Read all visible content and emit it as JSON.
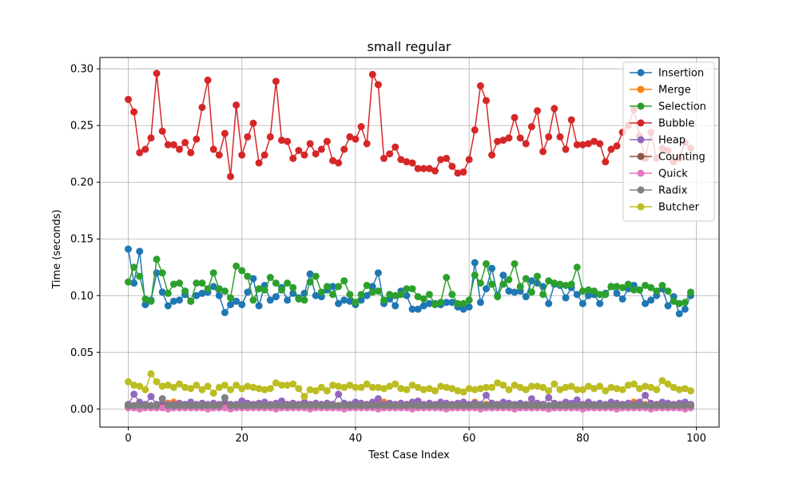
{
  "chart_data": {
    "type": "line",
    "title": "small regular",
    "xlabel": "Test Case Index",
    "ylabel": "Time (seconds)",
    "xlim": [
      -5,
      104
    ],
    "ylim": [
      -0.016,
      0.31
    ],
    "xticks": [
      0,
      20,
      40,
      60,
      80,
      100
    ],
    "yticks": [
      0.0,
      0.05,
      0.1,
      0.15,
      0.2,
      0.25,
      0.3
    ],
    "ytick_labels": [
      "0.00",
      "0.05",
      "0.10",
      "0.15",
      "0.20",
      "0.25",
      "0.30"
    ],
    "grid": true,
    "legend_position": "top-right",
    "x": [
      0,
      1,
      2,
      3,
      4,
      5,
      6,
      7,
      8,
      9,
      10,
      11,
      12,
      13,
      14,
      15,
      16,
      17,
      18,
      19,
      20,
      21,
      22,
      23,
      24,
      25,
      26,
      27,
      28,
      29,
      30,
      31,
      32,
      33,
      34,
      35,
      36,
      37,
      38,
      39,
      40,
      41,
      42,
      43,
      44,
      45,
      46,
      47,
      48,
      49,
      50,
      51,
      52,
      53,
      54,
      55,
      56,
      57,
      58,
      59,
      60,
      61,
      62,
      63,
      64,
      65,
      66,
      67,
      68,
      69,
      70,
      71,
      72,
      73,
      74,
      75,
      76,
      77,
      78,
      79,
      80,
      81,
      82,
      83,
      84,
      85,
      86,
      87,
      88,
      89,
      90,
      91,
      92,
      93,
      94,
      95,
      96,
      97,
      98,
      99
    ],
    "series": [
      {
        "name": "Insertion",
        "color": "#1f77b4",
        "values": [
          0.141,
          0.111,
          0.139,
          0.092,
          0.096,
          0.12,
          0.103,
          0.091,
          0.095,
          0.096,
          0.101,
          0.095,
          0.1,
          0.102,
          0.103,
          0.108,
          0.1,
          0.085,
          0.092,
          0.095,
          0.092,
          0.103,
          0.115,
          0.091,
          0.109,
          0.096,
          0.099,
          0.107,
          0.096,
          0.102,
          0.098,
          0.102,
          0.119,
          0.1,
          0.099,
          0.105,
          0.108,
          0.093,
          0.096,
          0.095,
          0.092,
          0.096,
          0.1,
          0.108,
          0.12,
          0.093,
          0.097,
          0.091,
          0.104,
          0.1,
          0.088,
          0.088,
          0.091,
          0.093,
          0.093,
          0.092,
          0.094,
          0.094,
          0.09,
          0.088,
          0.09,
          0.129,
          0.094,
          0.106,
          0.124,
          0.1,
          0.118,
          0.104,
          0.103,
          0.104,
          0.099,
          0.113,
          0.111,
          0.108,
          0.093,
          0.11,
          0.109,
          0.098,
          0.107,
          0.101,
          0.093,
          0.1,
          0.101,
          0.093,
          0.102,
          0.108,
          0.102,
          0.097,
          0.106,
          0.109,
          0.105,
          0.093,
          0.096,
          0.1,
          0.106,
          0.091,
          0.099,
          0.084,
          0.088,
          0.1
        ]
      },
      {
        "name": "Merge",
        "color": "#ff7f0e",
        "values": [
          0.004,
          0.003,
          0.003,
          0.004,
          0.003,
          0.004,
          0.003,
          0.005,
          0.006,
          0.003,
          0.004,
          0.003,
          0.003,
          0.004,
          0.003,
          0.004,
          0.003,
          0.004,
          0.003,
          0.004,
          0.007,
          0.003,
          0.004,
          0.003,
          0.004,
          0.003,
          0.004,
          0.003,
          0.004,
          0.003,
          0.004,
          0.003,
          0.004,
          0.003,
          0.004,
          0.003,
          0.004,
          0.003,
          0.004,
          0.003,
          0.004,
          0.003,
          0.004,
          0.003,
          0.004,
          0.006,
          0.003,
          0.004,
          0.003,
          0.004,
          0.003,
          0.004,
          0.003,
          0.004,
          0.003,
          0.004,
          0.003,
          0.004,
          0.003,
          0.004,
          0.003,
          0.006,
          0.003,
          0.004,
          0.003,
          0.004,
          0.003,
          0.004,
          0.003,
          0.004,
          0.003,
          0.004,
          0.003,
          0.004,
          0.003,
          0.004,
          0.003,
          0.004,
          0.003,
          0.004,
          0.003,
          0.004,
          0.003,
          0.004,
          0.003,
          0.004,
          0.003,
          0.004,
          0.003,
          0.006,
          0.003,
          0.004,
          0.003,
          0.004,
          0.003,
          0.004,
          0.003,
          0.004,
          0.003,
          0.004
        ]
      },
      {
        "name": "Selection",
        "color": "#2ca02c",
        "values": [
          0.112,
          0.125,
          0.117,
          0.097,
          0.095,
          0.132,
          0.12,
          0.102,
          0.11,
          0.111,
          0.104,
          0.095,
          0.111,
          0.111,
          0.106,
          0.12,
          0.106,
          0.104,
          0.098,
          0.126,
          0.122,
          0.117,
          0.096,
          0.106,
          0.105,
          0.116,
          0.111,
          0.105,
          0.111,
          0.107,
          0.097,
          0.096,
          0.112,
          0.117,
          0.103,
          0.108,
          0.101,
          0.108,
          0.113,
          0.101,
          0.094,
          0.101,
          0.109,
          0.103,
          0.104,
          0.096,
          0.101,
          0.1,
          0.101,
          0.106,
          0.106,
          0.099,
          0.097,
          0.101,
          0.092,
          0.094,
          0.116,
          0.101,
          0.093,
          0.093,
          0.096,
          0.118,
          0.111,
          0.128,
          0.11,
          0.099,
          0.11,
          0.114,
          0.128,
          0.108,
          0.115,
          0.103,
          0.117,
          0.101,
          0.113,
          0.111,
          0.11,
          0.109,
          0.11,
          0.125,
          0.104,
          0.105,
          0.104,
          0.101,
          0.101,
          0.108,
          0.108,
          0.107,
          0.11,
          0.105,
          0.105,
          0.109,
          0.107,
          0.104,
          0.109,
          0.104,
          0.095,
          0.093,
          0.094,
          0.103
        ]
      },
      {
        "name": "Bubble",
        "color": "#d62728",
        "values": [
          0.273,
          0.262,
          0.226,
          0.229,
          0.239,
          0.296,
          0.245,
          0.233,
          0.233,
          0.229,
          0.235,
          0.226,
          0.238,
          0.266,
          0.29,
          0.229,
          0.224,
          0.243,
          0.205,
          0.268,
          0.224,
          0.24,
          0.252,
          0.217,
          0.224,
          0.24,
          0.289,
          0.237,
          0.236,
          0.221,
          0.228,
          0.224,
          0.234,
          0.225,
          0.229,
          0.236,
          0.219,
          0.217,
          0.229,
          0.24,
          0.238,
          0.249,
          0.234,
          0.295,
          0.286,
          0.221,
          0.225,
          0.231,
          0.22,
          0.218,
          0.217,
          0.212,
          0.212,
          0.212,
          0.21,
          0.22,
          0.221,
          0.214,
          0.208,
          0.209,
          0.22,
          0.246,
          0.285,
          0.272,
          0.224,
          0.236,
          0.237,
          0.239,
          0.257,
          0.239,
          0.234,
          0.249,
          0.263,
          0.227,
          0.24,
          0.265,
          0.24,
          0.229,
          0.255,
          0.233,
          0.233,
          0.234,
          0.236,
          0.234,
          0.218,
          0.229,
          0.232,
          0.244,
          0.25,
          0.264,
          0.241,
          0.221,
          0.244,
          0.221,
          0.23,
          0.228,
          0.218,
          0.221,
          0.235,
          0.23
        ]
      },
      {
        "name": "Heap",
        "color": "#9467bd",
        "values": [
          0.004,
          0.013,
          0.006,
          0.004,
          0.011,
          0.004,
          0.005,
          0.004,
          0.004,
          0.005,
          0.004,
          0.006,
          0.004,
          0.005,
          0.004,
          0.005,
          0.004,
          0.006,
          0.004,
          0.004,
          0.007,
          0.005,
          0.004,
          0.005,
          0.006,
          0.004,
          0.005,
          0.007,
          0.004,
          0.005,
          0.004,
          0.006,
          0.004,
          0.005,
          0.004,
          0.005,
          0.004,
          0.013,
          0.005,
          0.004,
          0.006,
          0.005,
          0.004,
          0.006,
          0.009,
          0.004,
          0.005,
          0.004,
          0.005,
          0.004,
          0.006,
          0.007,
          0.004,
          0.005,
          0.004,
          0.006,
          0.005,
          0.004,
          0.005,
          0.006,
          0.004,
          0.005,
          0.004,
          0.012,
          0.005,
          0.004,
          0.006,
          0.005,
          0.004,
          0.005,
          0.004,
          0.009,
          0.005,
          0.004,
          0.01,
          0.005,
          0.004,
          0.006,
          0.005,
          0.008,
          0.004,
          0.006,
          0.004,
          0.005,
          0.004,
          0.006,
          0.005,
          0.004,
          0.005,
          0.004,
          0.006,
          0.012,
          0.005,
          0.004,
          0.006,
          0.005,
          0.004,
          0.005,
          0.006,
          0.004
        ]
      },
      {
        "name": "Counting",
        "color": "#8c564b",
        "values": [
          0.002,
          0.002,
          0.002,
          0.002,
          0.002,
          0.002,
          0.002,
          0.002,
          0.002,
          0.002,
          0.002,
          0.002,
          0.002,
          0.002,
          0.002,
          0.002,
          0.002,
          0.002,
          0.002,
          0.002,
          0.002,
          0.002,
          0.002,
          0.002,
          0.002,
          0.002,
          0.002,
          0.002,
          0.002,
          0.002,
          0.002,
          0.002,
          0.002,
          0.002,
          0.002,
          0.002,
          0.002,
          0.002,
          0.002,
          0.002,
          0.002,
          0.002,
          0.002,
          0.002,
          0.002,
          0.002,
          0.002,
          0.002,
          0.002,
          0.002,
          0.002,
          0.002,
          0.002,
          0.002,
          0.002,
          0.002,
          0.002,
          0.002,
          0.002,
          0.002,
          0.002,
          0.002,
          0.002,
          0.002,
          0.002,
          0.002,
          0.002,
          0.002,
          0.002,
          0.002,
          0.002,
          0.002,
          0.002,
          0.002,
          0.002,
          0.002,
          0.002,
          0.002,
          0.002,
          0.002,
          0.002,
          0.002,
          0.002,
          0.002,
          0.002,
          0.002,
          0.002,
          0.002,
          0.002,
          0.002,
          0.002,
          0.002,
          0.002,
          0.002,
          0.002,
          0.002,
          0.002,
          0.002,
          0.002,
          0.002
        ]
      },
      {
        "name": "Quick",
        "color": "#e377c2",
        "values": [
          0.001,
          0.001,
          0.0,
          0.001,
          0.001,
          0.001,
          0.001,
          0.0,
          0.001,
          0.001,
          0.001,
          0.001,
          0.001,
          0.001,
          0.0,
          0.001,
          0.001,
          0.001,
          0.0,
          0.001,
          0.001,
          0.001,
          0.001,
          0.001,
          0.001,
          0.001,
          0.0,
          0.001,
          0.001,
          0.001,
          0.001,
          0.001,
          0.0,
          0.001,
          0.001,
          0.001,
          0.001,
          0.001,
          0.0,
          0.001,
          0.001,
          0.001,
          0.001,
          0.001,
          0.0,
          0.001,
          0.001,
          0.001,
          0.001,
          0.001,
          0.0,
          0.001,
          0.001,
          0.001,
          0.001,
          0.001,
          0.0,
          0.001,
          0.001,
          0.001,
          0.001,
          0.001,
          0.0,
          0.001,
          0.001,
          0.001,
          0.001,
          0.001,
          0.0,
          0.001,
          0.001,
          0.001,
          0.001,
          0.001,
          0.0,
          0.001,
          0.001,
          0.001,
          0.001,
          0.001,
          0.0,
          0.001,
          0.001,
          0.001,
          0.001,
          0.001,
          0.0,
          0.001,
          0.001,
          0.001,
          0.001,
          0.001,
          0.0,
          0.001,
          0.001,
          0.001,
          0.001,
          0.001,
          0.0,
          0.001
        ]
      },
      {
        "name": "Radix",
        "color": "#7f7f7f",
        "values": [
          0.003,
          0.003,
          0.003,
          0.003,
          0.003,
          0.003,
          0.009,
          0.003,
          0.003,
          0.003,
          0.003,
          0.003,
          0.003,
          0.003,
          0.003,
          0.003,
          0.003,
          0.01,
          0.003,
          0.003,
          0.003,
          0.003,
          0.003,
          0.003,
          0.003,
          0.003,
          0.003,
          0.003,
          0.003,
          0.003,
          0.003,
          0.003,
          0.003,
          0.003,
          0.003,
          0.003,
          0.003,
          0.003,
          0.003,
          0.003,
          0.003,
          0.003,
          0.003,
          0.003,
          0.003,
          0.003,
          0.003,
          0.003,
          0.003,
          0.003,
          0.003,
          0.003,
          0.003,
          0.003,
          0.003,
          0.003,
          0.003,
          0.003,
          0.003,
          0.003,
          0.003,
          0.003,
          0.003,
          0.003,
          0.003,
          0.003,
          0.003,
          0.003,
          0.003,
          0.003,
          0.003,
          0.003,
          0.003,
          0.003,
          0.003,
          0.003,
          0.003,
          0.003,
          0.003,
          0.003,
          0.003,
          0.003,
          0.003,
          0.003,
          0.003,
          0.003,
          0.003,
          0.003,
          0.003,
          0.003,
          0.003,
          0.003,
          0.003,
          0.003,
          0.003,
          0.003,
          0.003,
          0.003,
          0.003,
          0.003
        ]
      },
      {
        "name": "Butcher",
        "color": "#bcbd22",
        "values": [
          0.024,
          0.021,
          0.02,
          0.017,
          0.031,
          0.024,
          0.02,
          0.021,
          0.019,
          0.022,
          0.019,
          0.018,
          0.021,
          0.017,
          0.02,
          0.014,
          0.019,
          0.021,
          0.017,
          0.021,
          0.018,
          0.02,
          0.019,
          0.018,
          0.017,
          0.018,
          0.023,
          0.021,
          0.021,
          0.022,
          0.018,
          0.011,
          0.017,
          0.016,
          0.019,
          0.016,
          0.021,
          0.02,
          0.019,
          0.021,
          0.019,
          0.019,
          0.022,
          0.019,
          0.019,
          0.018,
          0.02,
          0.022,
          0.018,
          0.017,
          0.021,
          0.019,
          0.017,
          0.018,
          0.016,
          0.02,
          0.019,
          0.018,
          0.016,
          0.015,
          0.018,
          0.017,
          0.018,
          0.019,
          0.019,
          0.023,
          0.021,
          0.017,
          0.021,
          0.019,
          0.017,
          0.02,
          0.02,
          0.019,
          0.016,
          0.022,
          0.017,
          0.019,
          0.02,
          0.017,
          0.017,
          0.02,
          0.018,
          0.02,
          0.016,
          0.019,
          0.018,
          0.017,
          0.021,
          0.022,
          0.018,
          0.02,
          0.019,
          0.017,
          0.025,
          0.022,
          0.019,
          0.017,
          0.018,
          0.016
        ]
      }
    ]
  }
}
